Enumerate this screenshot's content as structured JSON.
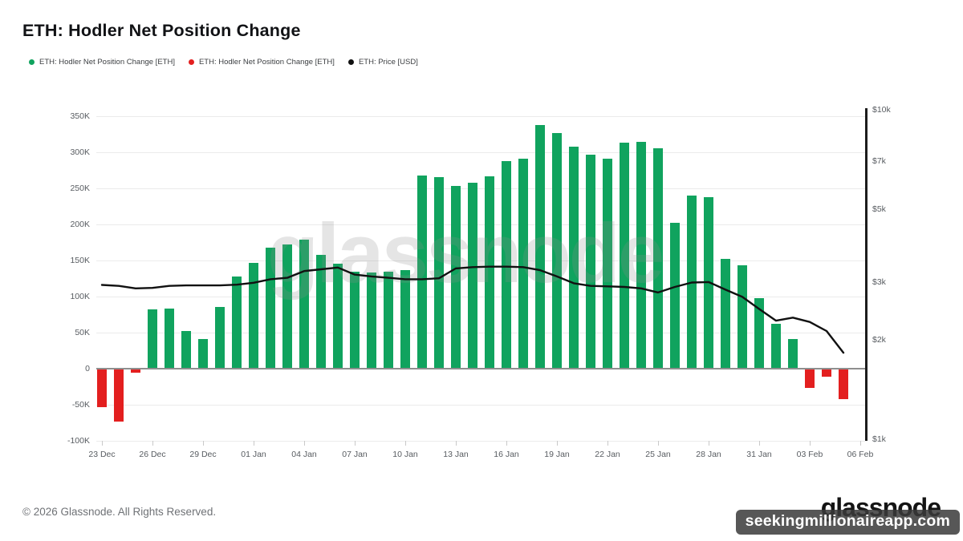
{
  "title": "ETH: Hodler Net Position Change",
  "legend": [
    {
      "label": "ETH: Hodler Net Position Change [ETH]",
      "color": "#10A35E"
    },
    {
      "label": "ETH: Hodler Net Position Change [ETH]",
      "color": "#E31F1F"
    },
    {
      "label": "ETH: Price [USD]",
      "color": "#111111"
    }
  ],
  "watermark": "glassnode",
  "footer": {
    "copyright": "© 2026 Glassnode. All Rights Reserved.",
    "logo": "glassnode",
    "banner": "seekingmillionaireapp.com"
  },
  "chart_data": {
    "type": "bar",
    "title": "ETH: Hodler Net Position Change",
    "categories": [
      "23 Dec",
      "24 Dec",
      "25 Dec",
      "26 Dec",
      "27 Dec",
      "28 Dec",
      "29 Dec",
      "30 Dec",
      "31 Dec",
      "01 Jan",
      "02 Jan",
      "03 Jan",
      "04 Jan",
      "05 Jan",
      "06 Jan",
      "07 Jan",
      "08 Jan",
      "09 Jan",
      "10 Jan",
      "11 Jan",
      "12 Jan",
      "13 Jan",
      "14 Jan",
      "15 Jan",
      "16 Jan",
      "17 Jan",
      "18 Jan",
      "19 Jan",
      "20 Jan",
      "21 Jan",
      "22 Jan",
      "23 Jan",
      "24 Jan",
      "25 Jan",
      "26 Jan",
      "27 Jan",
      "28 Jan",
      "29 Jan",
      "30 Jan",
      "31 Jan",
      "01 Feb",
      "02 Feb",
      "03 Feb",
      "04 Feb",
      "05 Feb"
    ],
    "series": [
      {
        "name": "ETH: Hodler Net Position Change [ETH]",
        "type": "bar",
        "axis": "left",
        "positive_color": "#10A35E",
        "negative_color": "#E31F1F",
        "values": [
          -53000,
          -73000,
          -6000,
          82000,
          83000,
          52000,
          41000,
          86000,
          128000,
          147000,
          168000,
          172000,
          179000,
          158000,
          146000,
          135000,
          133000,
          135000,
          137000,
          268000,
          266000,
          253000,
          258000,
          267000,
          288000,
          291000,
          338000,
          327000,
          308000,
          297000,
          291000,
          313000,
          314000,
          306000,
          202000,
          240000,
          238000,
          152000,
          143000,
          98000,
          62000,
          41000,
          -27000,
          -11000,
          -42000
        ]
      },
      {
        "name": "ETH: Price [USD]",
        "type": "line",
        "axis": "right",
        "color": "#111111",
        "values": [
          2940,
          2920,
          2870,
          2880,
          2920,
          2930,
          2930,
          2930,
          2945,
          2985,
          3060,
          3090,
          3240,
          3280,
          3320,
          3160,
          3120,
          3090,
          3060,
          3060,
          3080,
          3300,
          3330,
          3340,
          3340,
          3330,
          3260,
          3120,
          2975,
          2920,
          2910,
          2900,
          2870,
          2790,
          2900,
          2990,
          3000,
          2845,
          2705,
          2485,
          2290,
          2340,
          2270,
          2130,
          1830
        ]
      }
    ],
    "left_axis": {
      "unit": "ETH",
      "min": -100000,
      "max": 350000,
      "scale": "linear",
      "ticks": [
        {
          "label": "350K",
          "value": 350000
        },
        {
          "label": "300K",
          "value": 300000
        },
        {
          "label": "250K",
          "value": 250000
        },
        {
          "label": "200K",
          "value": 200000
        },
        {
          "label": "150K",
          "value": 150000
        },
        {
          "label": "100K",
          "value": 100000
        },
        {
          "label": "50K",
          "value": 50000
        },
        {
          "label": "0",
          "value": 0
        },
        {
          "label": "-50K",
          "value": -50000
        },
        {
          "label": "-100K",
          "value": -100000
        }
      ]
    },
    "right_axis": {
      "unit": "USD",
      "min": 1000,
      "max": 10000,
      "scale": "log",
      "ticks": [
        {
          "label": "$10k",
          "value": 10000
        },
        {
          "label": "$7k",
          "value": 7000
        },
        {
          "label": "$5k",
          "value": 5000
        },
        {
          "label": "$3k",
          "value": 3000
        },
        {
          "label": "$2k",
          "value": 2000
        },
        {
          "label": "$1k",
          "value": 1000
        }
      ]
    },
    "x_ticks": [
      "23 Dec",
      "26 Dec",
      "29 Dec",
      "01 Jan",
      "04 Jan",
      "07 Jan",
      "10 Jan",
      "13 Jan",
      "16 Jan",
      "19 Jan",
      "22 Jan",
      "25 Jan",
      "28 Jan",
      "31 Jan",
      "03 Feb",
      "06 Feb"
    ],
    "grid": true,
    "legend_position": "top-left"
  }
}
